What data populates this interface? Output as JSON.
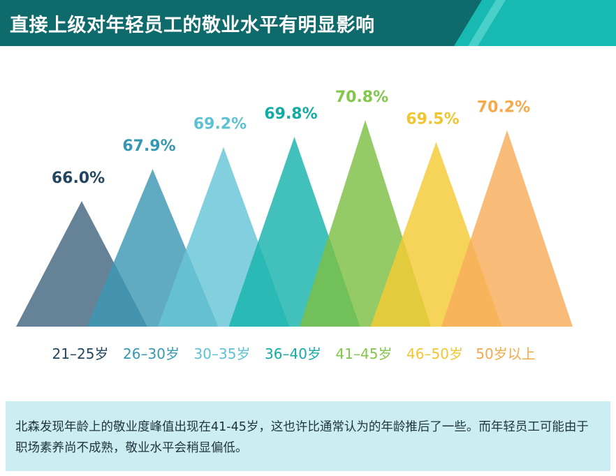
{
  "header": {
    "title": "直接上级对年轻员工的敬业水平有明显影响",
    "band_color": "#0f6a6b",
    "accent_color": "#18b8b3",
    "stripe_color": "#49d0c8"
  },
  "chart_data": {
    "type": "area",
    "title": "直接上级对年轻员工的敬业水平有明显影响",
    "categories": [
      "21–25岁",
      "26–30岁",
      "30–35岁",
      "36–40岁",
      "41–45岁",
      "46–50岁",
      "50岁以上"
    ],
    "values": [
      66.0,
      67.9,
      69.2,
      69.8,
      70.8,
      69.5,
      70.2
    ],
    "value_labels": [
      "66.0%",
      "67.9%",
      "69.2%",
      "69.8%",
      "70.8%",
      "69.5%",
      "70.2%"
    ],
    "colors": [
      "#44677f",
      "#3e98b4",
      "#66c4d6",
      "#19b3ad",
      "#7cc044",
      "#f4cb36",
      "#f6ad5a"
    ],
    "label_colors": [
      "#21465e",
      "#3598b3",
      "#5cc1d3",
      "#13aba5",
      "#82c64a",
      "#f0c630",
      "#f4a94a"
    ],
    "xlabel": "",
    "ylabel": "",
    "grid": false,
    "legend": "none"
  },
  "footer": {
    "text": "北森发现年龄上的敬业度峰值出现在41-45岁，这也许比通常认为的年龄推后了一些。而年轻员工可能由于职场素养尚不成熟，敬业水平会稍显偏低。",
    "background": "#cdeef0"
  }
}
